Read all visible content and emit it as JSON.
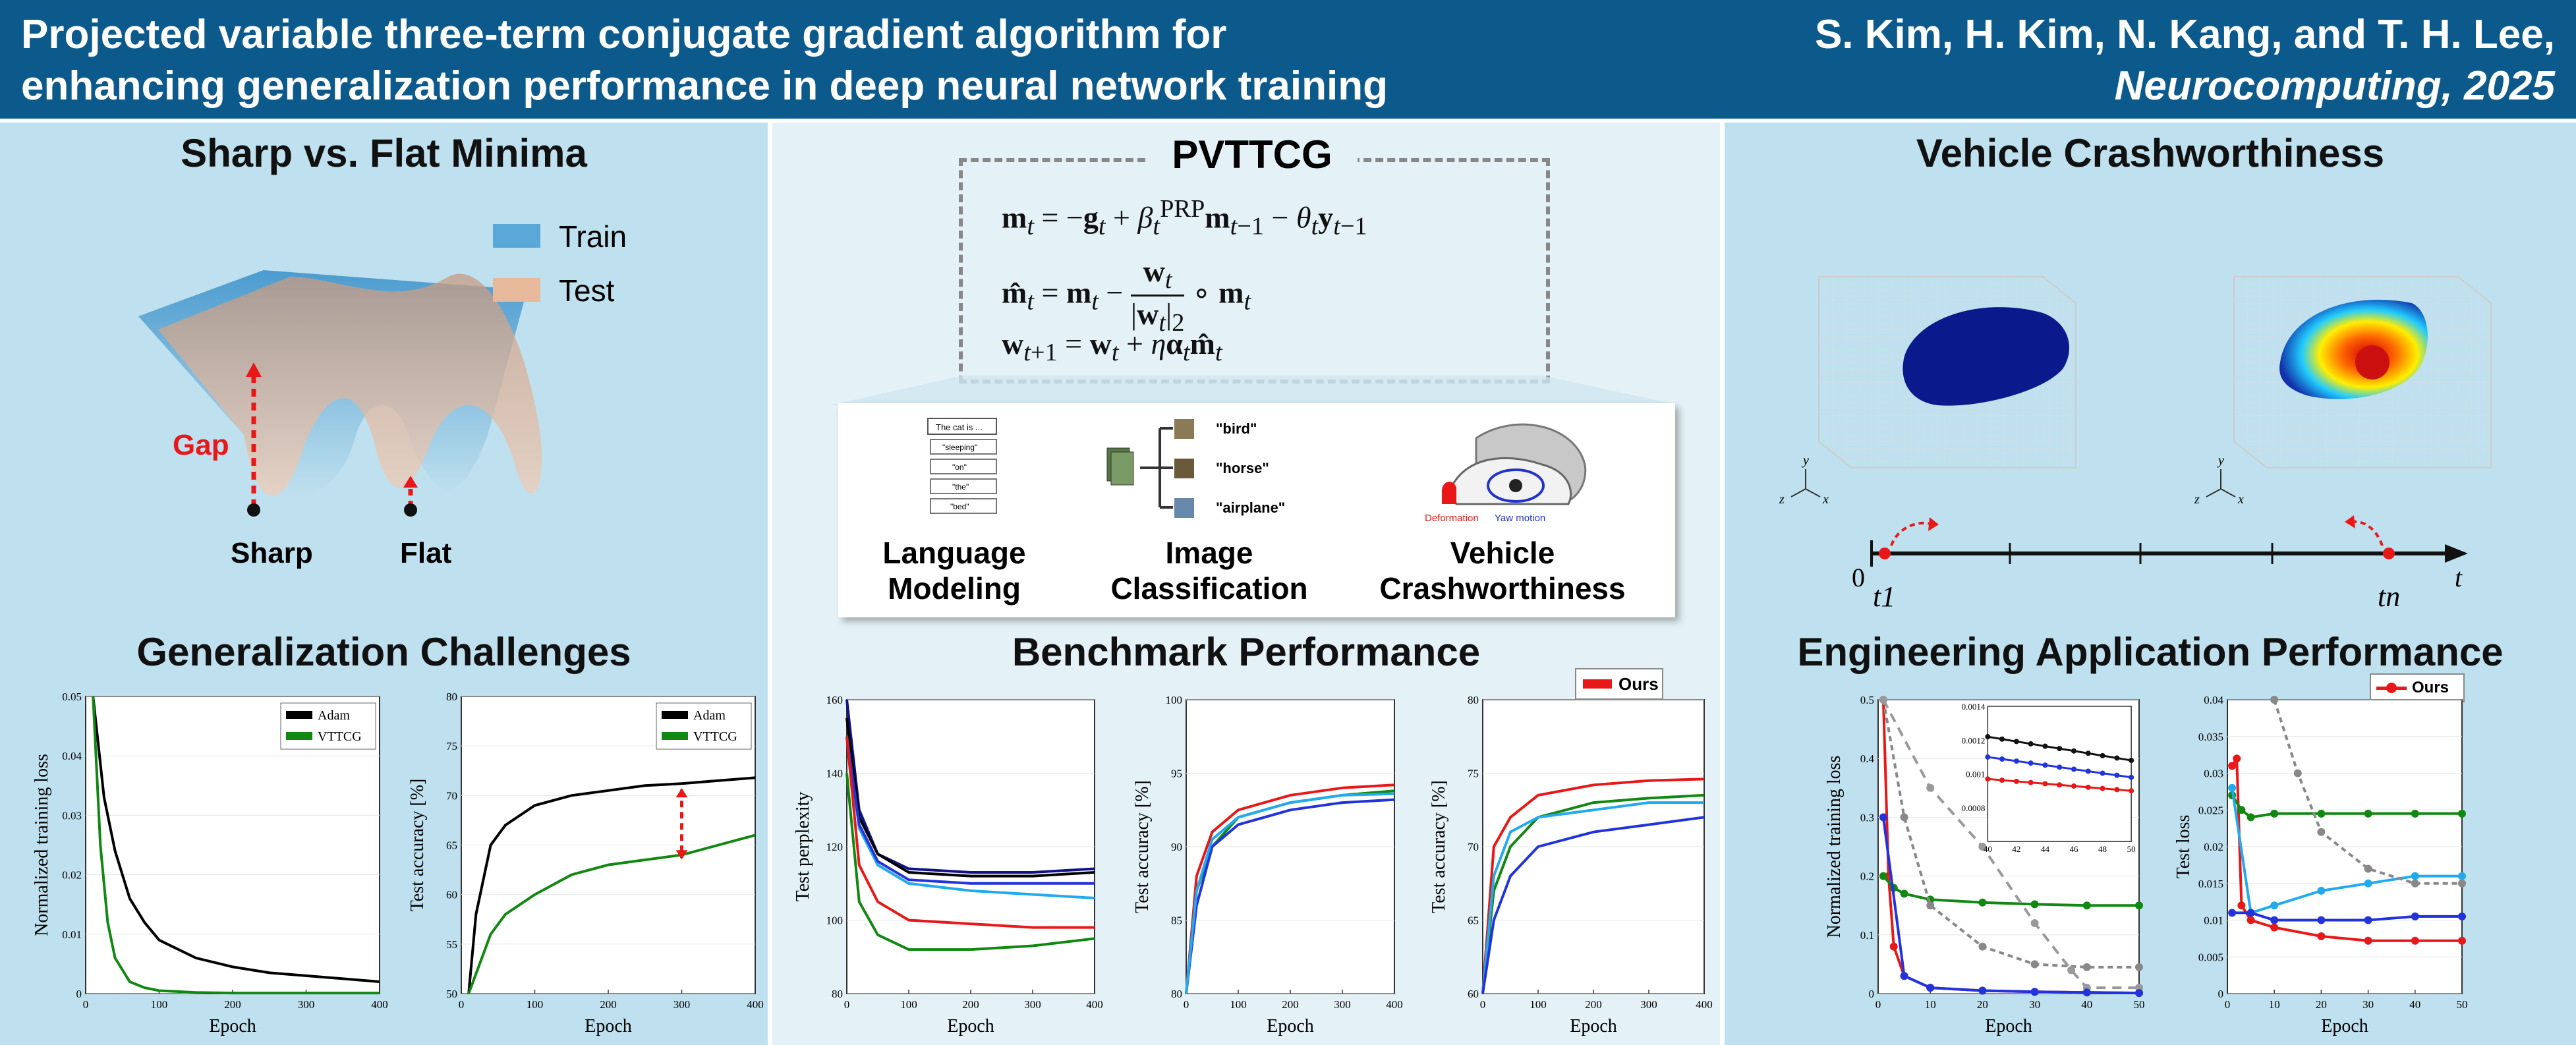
{
  "header": {
    "title_line1": "Projected variable three-term conjugate gradient algorithm for",
    "title_line2": "enhancing generalization performance in deep neural network training",
    "authors": "S. Kim, H. Kim, N. Kang, and T. H. Lee,",
    "venue": "Neurocomputing, 2025"
  },
  "left": {
    "minima_title": "Sharp vs. Flat Minima",
    "legend_train": "Train",
    "legend_test": "Test",
    "gap_label": "Gap",
    "sharp_label": "Sharp",
    "flat_label": "Flat",
    "gen_title": "Generalization Challenges"
  },
  "middle": {
    "formula_title": "PVTTCG",
    "eq1": "m_t = −g_t + β_t^PRP m_{t−1} − θ_t y_{t−1}",
    "eq2": "m̂_t = m_t − (w_t / |w_t|_2) ∘ m_t",
    "eq3": "w_{t+1} = w_t + η α_t m̂_t",
    "lm_box_top": "The cat is ...",
    "lm_tokens": [
      "\"sleeping\"",
      "\"on\"",
      "\"the\"",
      "\"bed\""
    ],
    "img_labels": [
      "\"bird\"",
      "\"horse\"",
      "\"airplane\""
    ],
    "deformation": "Deformation",
    "yaw": "Yaw motion",
    "app1_l1": "Language",
    "app1_l2": "Modeling",
    "app2_l1": "Image",
    "app2_l2": "Classification",
    "app3_l1": "Vehicle",
    "app3_l2": "Crashworthiness",
    "bench_title": "Benchmark Performance",
    "ours": "Ours"
  },
  "right": {
    "vc_title": "Vehicle Crashworthiness",
    "axis_x": "x",
    "axis_y": "y",
    "axis_z": "z",
    "t_zero": "0",
    "t1": "t1",
    "tn": "tn",
    "t": "t",
    "eng_title": "Engineering Application Performance",
    "ours": "Ours"
  },
  "colors": {
    "header": "#0c5a8c",
    "train": "#5aa8d8",
    "test": "#e8b89a",
    "ours": "#e81818"
  },
  "chart_data": [
    {
      "type": "line",
      "title": "",
      "xlabel": "Epoch",
      "ylabel": "Normalized training loss",
      "xlim": [
        0,
        400
      ],
      "ylim": [
        0,
        0.05
      ],
      "xticks": [
        0,
        100,
        200,
        300,
        400
      ],
      "yticks": [
        0,
        0.01,
        0.02,
        0.03,
        0.04,
        0.05
      ],
      "series": [
        {
          "name": "Adam",
          "color": "#000000",
          "x": [
            10,
            25,
            40,
            60,
            80,
            100,
            150,
            200,
            250,
            300,
            350,
            400
          ],
          "y": [
            0.05,
            0.033,
            0.024,
            0.016,
            0.012,
            0.009,
            0.006,
            0.0045,
            0.0035,
            0.003,
            0.0025,
            0.002
          ]
        },
        {
          "name": "VTTCG",
          "color": "#118811",
          "x": [
            10,
            20,
            30,
            40,
            60,
            80,
            100,
            150,
            200,
            300,
            400
          ],
          "y": [
            0.05,
            0.025,
            0.012,
            0.006,
            0.002,
            0.001,
            0.0005,
            0.0002,
            0.0001,
            0.0001,
            0.0001
          ]
        }
      ]
    },
    {
      "type": "line",
      "xlabel": "Epoch",
      "ylabel": "Test accuracy [%]",
      "xlim": [
        0,
        400
      ],
      "ylim": [
        50,
        80
      ],
      "xticks": [
        0,
        100,
        200,
        300,
        400
      ],
      "yticks": [
        50,
        55,
        60,
        65,
        70,
        75,
        80
      ],
      "series": [
        {
          "name": "Adam",
          "color": "#000000",
          "x": [
            10,
            20,
            40,
            60,
            80,
            100,
            150,
            200,
            250,
            300,
            350,
            400
          ],
          "y": [
            50,
            58,
            65,
            67,
            68,
            69,
            70,
            70.5,
            71,
            71.2,
            71.5,
            71.8
          ]
        },
        {
          "name": "VTTCG",
          "color": "#118811",
          "x": [
            10,
            20,
            40,
            60,
            80,
            100,
            150,
            200,
            250,
            300,
            350,
            400
          ],
          "y": [
            50,
            52,
            56,
            58,
            59,
            60,
            62,
            63,
            63.5,
            64,
            65,
            66
          ]
        }
      ]
    },
    {
      "type": "line",
      "xlabel": "Epoch",
      "ylabel": "Test perplexity",
      "xlim": [
        0,
        400
      ],
      "ylim": [
        80,
        160
      ],
      "xticks": [
        0,
        100,
        200,
        300,
        400
      ],
      "yticks": [
        80,
        100,
        120,
        140,
        160
      ],
      "series": [
        {
          "name": "navy",
          "color": "#111188",
          "x": [
            0,
            20,
            50,
            100,
            200,
            300,
            400
          ],
          "y": [
            160,
            130,
            118,
            114,
            113,
            113,
            114
          ]
        },
        {
          "name": "black",
          "color": "#000000",
          "x": [
            0,
            20,
            50,
            100,
            200,
            300,
            400
          ],
          "y": [
            155,
            128,
            118,
            113,
            112,
            112,
            113
          ]
        },
        {
          "name": "cyan",
          "color": "#22aaee",
          "x": [
            0,
            20,
            50,
            100,
            200,
            300,
            400
          ],
          "y": [
            150,
            125,
            115,
            110,
            108,
            107,
            106
          ]
        },
        {
          "name": "blue",
          "color": "#2233dd",
          "x": [
            0,
            20,
            50,
            100,
            200,
            300,
            400
          ],
          "y": [
            150,
            126,
            116,
            111,
            110,
            110,
            110
          ]
        },
        {
          "name": "Ours",
          "color": "#e81818",
          "x": [
            0,
            20,
            50,
            100,
            200,
            300,
            400
          ],
          "y": [
            150,
            115,
            105,
            100,
            99,
            98,
            98
          ]
        },
        {
          "name": "green",
          "color": "#118811",
          "x": [
            0,
            20,
            50,
            100,
            200,
            300,
            400
          ],
          "y": [
            140,
            105,
            96,
            92,
            92,
            93,
            95
          ]
        }
      ]
    },
    {
      "type": "line",
      "xlabel": "Epoch",
      "ylabel": "Test accuracy [%]",
      "xlim": [
        0,
        400
      ],
      "ylim": [
        80,
        100
      ],
      "xticks": [
        0,
        100,
        200,
        300,
        400
      ],
      "yticks": [
        80,
        85,
        90,
        95,
        100
      ],
      "series": [
        {
          "name": "Ours",
          "color": "#e81818",
          "x": [
            0,
            20,
            50,
            100,
            200,
            300,
            400
          ],
          "y": [
            80,
            88,
            91,
            92.5,
            93.5,
            94,
            94.2
          ]
        },
        {
          "name": "green",
          "color": "#118811",
          "x": [
            0,
            20,
            50,
            100,
            200,
            300,
            400
          ],
          "y": [
            80,
            87,
            90,
            92,
            93,
            93.5,
            93.8
          ]
        },
        {
          "name": "blue",
          "color": "#2233dd",
          "x": [
            0,
            20,
            50,
            100,
            200,
            300,
            400
          ],
          "y": [
            80,
            86,
            90,
            91.5,
            92.5,
            93,
            93.2
          ]
        },
        {
          "name": "cyan",
          "color": "#22aaee",
          "x": [
            0,
            20,
            50,
            100,
            200,
            300,
            400
          ],
          "y": [
            80,
            87,
            90.5,
            92,
            93,
            93.5,
            93.6
          ]
        }
      ]
    },
    {
      "type": "line",
      "xlabel": "Epoch",
      "ylabel": "Test accuracy [%]",
      "xlim": [
        0,
        400
      ],
      "ylim": [
        60,
        80
      ],
      "xticks": [
        0,
        100,
        200,
        300,
        400
      ],
      "yticks": [
        60,
        65,
        70,
        75,
        80
      ],
      "series": [
        {
          "name": "Ours",
          "color": "#e81818",
          "x": [
            0,
            20,
            50,
            100,
            200,
            300,
            400
          ],
          "y": [
            60,
            70,
            72,
            73.5,
            74.2,
            74.5,
            74.6
          ]
        },
        {
          "name": "green",
          "color": "#118811",
          "x": [
            0,
            20,
            50,
            100,
            200,
            300,
            400
          ],
          "y": [
            60,
            67,
            70,
            72,
            73,
            73.3,
            73.5
          ]
        },
        {
          "name": "cyan",
          "color": "#22aaee",
          "x": [
            0,
            20,
            50,
            100,
            200,
            300,
            400
          ],
          "y": [
            60,
            68,
            71,
            72,
            72.5,
            73,
            73
          ]
        },
        {
          "name": "blue",
          "color": "#2233dd",
          "x": [
            0,
            20,
            50,
            100,
            200,
            300,
            400
          ],
          "y": [
            60,
            65,
            68,
            70,
            71,
            71.5,
            72
          ]
        }
      ],
      "legend": [
        "Ours"
      ]
    },
    {
      "type": "line",
      "xlabel": "Epoch",
      "ylabel": "Normalized training loss",
      "xlim": [
        0,
        50
      ],
      "ylim": [
        0,
        0.5
      ],
      "xticks": [
        0,
        10,
        20,
        30,
        40,
        50
      ],
      "yticks": [
        0,
        0.1,
        0.2,
        0.3,
        0.4,
        0.5
      ],
      "inset": {
        "xlim": [
          40,
          50
        ],
        "ylim": [
          0.0006,
          0.0014
        ],
        "xticks": [
          40,
          42,
          44,
          46,
          48,
          50
        ],
        "yticks": [
          0.0008,
          0.001,
          0.0012,
          0.0014
        ]
      },
      "series": [
        {
          "name": "Ours",
          "color": "#e81818",
          "x": [
            1,
            2,
            3,
            5,
            10,
            20,
            30,
            40,
            50
          ],
          "y": [
            0.5,
            0.2,
            0.08,
            0.03,
            0.01,
            0.005,
            0.003,
            0.002,
            0.001
          ]
        },
        {
          "name": "green",
          "color": "#118811",
          "x": [
            1,
            3,
            5,
            10,
            20,
            30,
            40,
            50
          ],
          "y": [
            0.2,
            0.18,
            0.17,
            0.16,
            0.155,
            0.152,
            0.15,
            0.15
          ]
        },
        {
          "name": "gray-x",
          "color": "#888888",
          "x": [
            1,
            5,
            10,
            20,
            30,
            40,
            50
          ],
          "y": [
            0.5,
            0.3,
            0.15,
            0.08,
            0.05,
            0.045,
            0.045
          ]
        },
        {
          "name": "gray-dash",
          "color": "#999999",
          "x": [
            1,
            10,
            20,
            30,
            37,
            40,
            50
          ],
          "y": [
            0.5,
            0.35,
            0.25,
            0.12,
            0.04,
            0.01,
            0.01
          ]
        },
        {
          "name": "blue",
          "color": "#2233dd",
          "x": [
            1,
            5,
            10,
            20,
            30,
            40,
            50
          ],
          "y": [
            0.3,
            0.03,
            0.01,
            0.005,
            0.003,
            0.002,
            0.001
          ]
        }
      ]
    },
    {
      "type": "line",
      "xlabel": "Epoch",
      "ylabel": "Test loss",
      "xlim": [
        0,
        50
      ],
      "ylim": [
        0,
        0.04
      ],
      "xticks": [
        0,
        10,
        20,
        30,
        40,
        50
      ],
      "yticks": [
        0,
        0.005,
        0.01,
        0.015,
        0.02,
        0.025,
        0.03,
        0.035,
        0.04
      ],
      "series": [
        {
          "name": "Ours",
          "color": "#e81818",
          "x": [
            1,
            2,
            3,
            5,
            10,
            20,
            30,
            40,
            50
          ],
          "y": [
            0.031,
            0.032,
            0.012,
            0.01,
            0.009,
            0.0078,
            0.0072,
            0.0072,
            0.0072
          ]
        },
        {
          "name": "green",
          "color": "#118811",
          "x": [
            1,
            3,
            5,
            10,
            20,
            30,
            40,
            50
          ],
          "y": [
            0.027,
            0.025,
            0.024,
            0.0245,
            0.0245,
            0.0245,
            0.0245,
            0.0245
          ]
        },
        {
          "name": "cyan",
          "color": "#22aaee",
          "x": [
            1,
            5,
            10,
            20,
            30,
            40,
            50
          ],
          "y": [
            0.028,
            0.011,
            0.012,
            0.014,
            0.015,
            0.016,
            0.016
          ]
        },
        {
          "name": "blue",
          "color": "#2233dd",
          "x": [
            1,
            5,
            10,
            20,
            30,
            40,
            50
          ],
          "y": [
            0.011,
            0.011,
            0.01,
            0.01,
            0.01,
            0.0105,
            0.0105
          ]
        },
        {
          "name": "gray-x",
          "color": "#888888",
          "x": [
            10,
            15,
            20,
            30,
            40,
            50
          ],
          "y": [
            0.04,
            0.03,
            0.022,
            0.017,
            0.015,
            0.015
          ]
        }
      ],
      "legend": [
        "Ours"
      ]
    }
  ]
}
